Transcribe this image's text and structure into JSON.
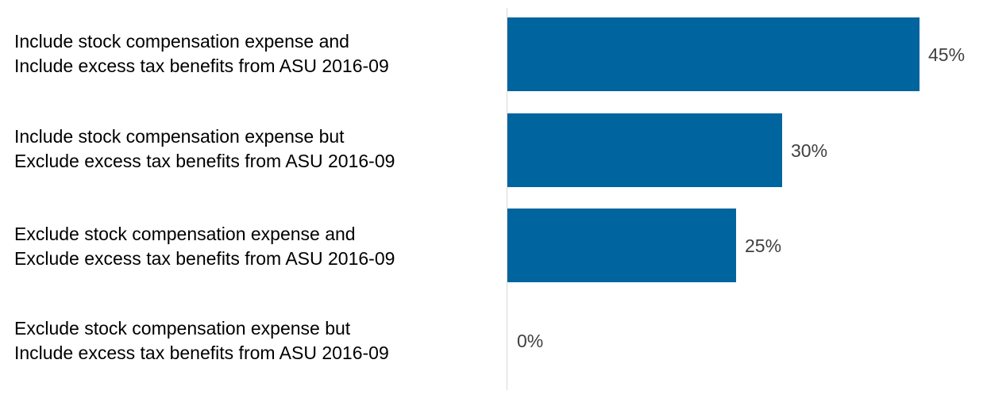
{
  "chart_data": {
    "type": "bar",
    "orientation": "horizontal",
    "categories": [
      [
        "Include stock compensation expense and",
        "Include excess tax benefits from ASU 2016-09"
      ],
      [
        "Include stock compensation expense but",
        "Exclude excess tax benefits from ASU 2016-09"
      ],
      [
        "Exclude stock compensation expense and",
        "Exclude excess tax benefits from ASU 2016-09"
      ],
      [
        "Exclude stock compensation expense but",
        "Include excess tax benefits from ASU 2016-09"
      ]
    ],
    "values": [
      45,
      30,
      25,
      0
    ],
    "value_labels": [
      "45%",
      "30%",
      "25%",
      "0%"
    ],
    "xlim": [
      0,
      45
    ],
    "grid": false,
    "legend": "none",
    "bar_color": "#00649e",
    "title": "",
    "xlabel": "",
    "ylabel": ""
  }
}
